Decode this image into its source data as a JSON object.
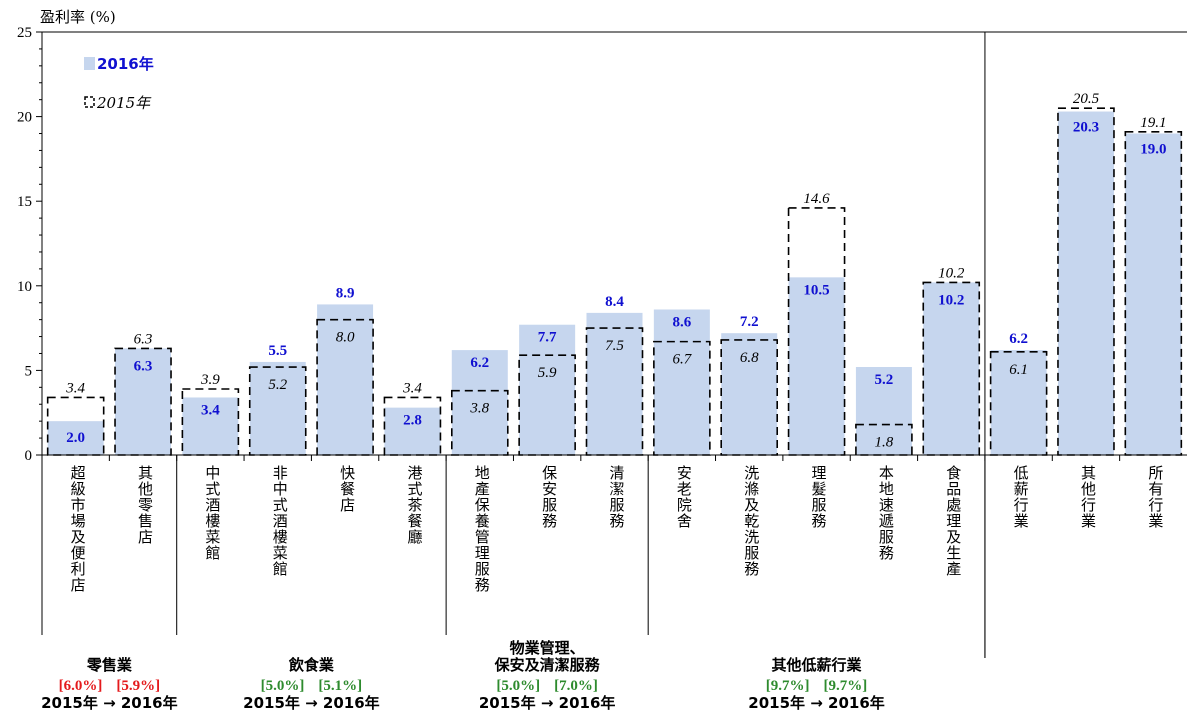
{
  "chart_data": {
    "type": "bar",
    "ylabel": "盈利率 (%)",
    "ylim": [
      0,
      25
    ],
    "yticks": [
      0,
      5,
      10,
      15,
      20,
      25
    ],
    "categories": [
      "超級市場及便利店",
      "其他零售店",
      "中式酒樓菜館",
      "非中式酒樓菜館",
      "快餐店",
      "港式茶餐廳",
      "地產保養管理服務",
      "保安服務",
      "清潔服務",
      "安老院舍",
      "洗滌及乾洗服務",
      "理髮服務",
      "本地速遞服務",
      "食品處理及生產",
      "低薪行業",
      "其他行業",
      "所有行業"
    ],
    "series": [
      {
        "name": "2016年",
        "style": "filled",
        "values": [
          2.0,
          6.3,
          3.4,
          5.5,
          8.9,
          2.8,
          6.2,
          7.7,
          8.4,
          8.6,
          7.2,
          10.5,
          5.2,
          10.2,
          6.2,
          20.3,
          19.0
        ],
        "labels": [
          "2.0",
          "6.3",
          "3.4",
          "5.5",
          "8.9",
          "2.8",
          "6.2",
          "7.7",
          "8.4",
          "8.6",
          "7.2",
          "10.5",
          "5.2",
          "10.2",
          "6.2",
          "20.3",
          "19.0"
        ]
      },
      {
        "name": "2015年",
        "style": "dashed-outline",
        "values": [
          3.4,
          6.3,
          3.9,
          5.2,
          8.0,
          3.4,
          3.8,
          5.9,
          7.5,
          6.7,
          6.8,
          14.6,
          1.8,
          10.2,
          6.1,
          20.5,
          19.1
        ],
        "labels": [
          "3.4",
          "6.3",
          "3.9",
          "5.2",
          "8.0",
          "3.4",
          "3.8",
          "5.9",
          "7.5",
          "6.7",
          "6.8",
          "14.6",
          "1.8",
          "10.2",
          "6.1",
          "20.5",
          "19.1"
        ]
      }
    ],
    "groups": [
      {
        "name_lines": [
          "零售業"
        ],
        "rate_2015": "[6.0%]",
        "rate_2016": "[5.9%]",
        "rate_color": "#e41a1c",
        "years": "2015年 → 2016年",
        "span": [
          0,
          1
        ]
      },
      {
        "name_lines": [
          "飲食業"
        ],
        "rate_2015": "[5.0%]",
        "rate_2016": "[5.1%]",
        "rate_color": "#2e8b2e",
        "years": "2015年 → 2016年",
        "span": [
          2,
          5
        ]
      },
      {
        "name_lines": [
          "物業管理、",
          "保安及清潔服務"
        ],
        "rate_2015": "[5.0%]",
        "rate_2016": "[7.0%]",
        "rate_color": "#2e8b2e",
        "years": "2015年 → 2016年",
        "span": [
          6,
          8
        ]
      },
      {
        "name_lines": [
          "其他低薪行業"
        ],
        "rate_2015": "[9.7%]",
        "rate_2016": "[9.7%]",
        "rate_color": "#2e8b2e",
        "years": "2015年 → 2016年",
        "span": [
          9,
          13
        ]
      }
    ],
    "colors": {
      "bar_2016": "#c6d6ee",
      "label_2016": "#1010d0",
      "outline_2015": "#000000"
    },
    "legend_position": "top-left",
    "grid": false
  }
}
